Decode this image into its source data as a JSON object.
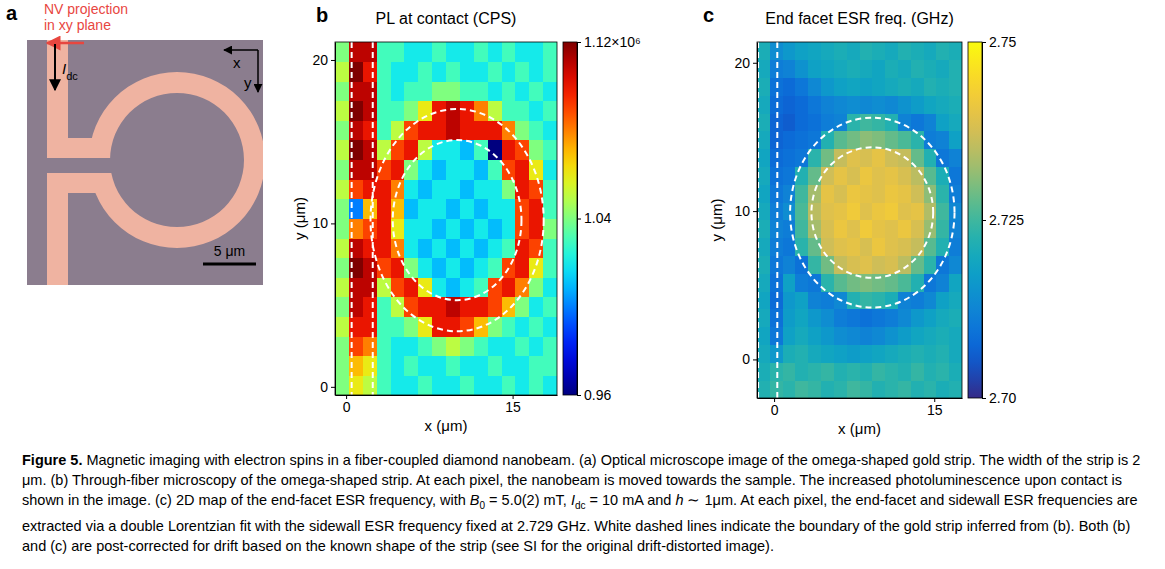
{
  "chart_data": [
    {
      "type": "heatmap",
      "letter": "b",
      "title": "PL at contact (CPS)",
      "x_label": "x (μm)",
      "y_label": "y (μm)",
      "xlim": [
        -1,
        19
      ],
      "ylim": [
        -0.5,
        21.1
      ],
      "xticks": [
        0,
        15
      ],
      "yticks": [
        0,
        10,
        20
      ],
      "x_bins": [
        -1,
        0.25,
        1.5,
        2.75,
        4,
        5.25,
        6.5,
        7.75,
        9,
        10.25,
        11.5,
        12.75,
        14,
        15.25,
        16.5,
        17.75,
        19
      ],
      "y_bins": [
        -0.5,
        0.7,
        1.9,
        3.1,
        4.3,
        5.5,
        6.7,
        7.9,
        9.1,
        10.3,
        11.5,
        12.7,
        13.9,
        15.1,
        16.3,
        17.5,
        18.7,
        19.9,
        21.1
      ],
      "z": [
        [
          1.04,
          1.06,
          1.05,
          1.03,
          1.02,
          1.02,
          1.03,
          1.02,
          1.02,
          1.03,
          1.02,
          1.02,
          1.03,
          1.02,
          1.03,
          1.02
        ],
        [
          1.04,
          1.07,
          1.06,
          1.03,
          1.02,
          1.03,
          1.02,
          1.02,
          1.03,
          1.02,
          1.02,
          1.03,
          1.02,
          1.02,
          1.03,
          1.03
        ],
        [
          1.04,
          1.09,
          1.08,
          1.03,
          1.02,
          1.02,
          1.03,
          1.04,
          1.05,
          1.04,
          1.03,
          1.02,
          1.02,
          1.03,
          1.02,
          1.03
        ],
        [
          1.05,
          1.1,
          1.1,
          1.03,
          1.03,
          1.04,
          1.06,
          1.1,
          1.1,
          1.09,
          1.07,
          1.04,
          1.03,
          1.02,
          1.03,
          1.02
        ],
        [
          1.04,
          1.11,
          1.1,
          1.03,
          1.05,
          1.09,
          1.1,
          1.1,
          1.11,
          1.1,
          1.1,
          1.09,
          1.07,
          1.04,
          1.02,
          1.03
        ],
        [
          1.05,
          1.11,
          1.11,
          1.05,
          1.09,
          1.1,
          1.06,
          1.02,
          1.01,
          1.02,
          1.03,
          1.09,
          1.1,
          1.08,
          1.04,
          1.02
        ],
        [
          1.04,
          1.12,
          1.11,
          1.09,
          1.1,
          1.04,
          1.02,
          1.01,
          1.02,
          1.01,
          1.02,
          1.03,
          1.09,
          1.1,
          1.06,
          1.03
        ],
        [
          1.05,
          1.11,
          1.1,
          1.1,
          1.08,
          1.02,
          1.01,
          1.02,
          1.01,
          1.02,
          1.01,
          1.02,
          1.03,
          1.1,
          1.09,
          1.03
        ],
        [
          1.04,
          1.08,
          1.09,
          1.1,
          1.06,
          1.02,
          1.02,
          1.01,
          1.02,
          1.01,
          1.02,
          1.01,
          1.02,
          1.09,
          1.1,
          1.04
        ],
        [
          1.04,
          1.0,
          1.07,
          1.1,
          1.07,
          1.01,
          1.02,
          1.02,
          1.01,
          1.02,
          1.01,
          1.02,
          1.02,
          1.09,
          1.1,
          1.03
        ],
        [
          1.05,
          1.09,
          1.1,
          1.1,
          1.08,
          1.02,
          1.01,
          1.02,
          1.02,
          1.01,
          1.02,
          1.02,
          1.04,
          1.1,
          1.09,
          1.03
        ],
        [
          1.04,
          1.11,
          1.11,
          1.09,
          1.1,
          1.04,
          1.02,
          1.01,
          1.02,
          1.02,
          1.01,
          1.03,
          1.09,
          1.1,
          1.06,
          1.02
        ],
        [
          1.05,
          1.12,
          1.11,
          1.05,
          1.09,
          1.1,
          1.05,
          1.02,
          1.02,
          1.01,
          1.03,
          0.96,
          1.1,
          1.09,
          1.04,
          1.03
        ],
        [
          1.04,
          1.11,
          1.1,
          1.03,
          1.05,
          1.09,
          1.1,
          1.1,
          1.11,
          1.1,
          1.1,
          1.1,
          1.08,
          1.04,
          1.03,
          1.02
        ],
        [
          1.05,
          1.12,
          1.11,
          1.03,
          1.03,
          1.04,
          1.06,
          1.1,
          1.11,
          1.1,
          1.08,
          1.05,
          1.03,
          1.03,
          1.02,
          1.03
        ],
        [
          1.04,
          1.11,
          1.11,
          1.03,
          1.02,
          1.03,
          1.03,
          1.04,
          1.04,
          1.03,
          1.03,
          1.02,
          1.03,
          1.02,
          1.03,
          1.02
        ],
        [
          1.05,
          1.12,
          1.1,
          1.03,
          1.02,
          1.02,
          1.03,
          1.02,
          1.03,
          1.02,
          1.02,
          1.03,
          1.02,
          1.03,
          1.02,
          1.03
        ],
        [
          1.04,
          1.11,
          1.11,
          1.03,
          1.03,
          1.02,
          1.02,
          1.03,
          1.02,
          1.02,
          1.03,
          1.02,
          1.03,
          1.02,
          1.02,
          1.03
        ]
      ],
      "colorbar": {
        "range": [
          0.96,
          1.12
        ],
        "ticks": [
          0.96,
          1.04,
          {
            "value": 1.12,
            "label": "1.12×10⁶"
          }
        ]
      },
      "boundary": {
        "strip_x": [
          0.5,
          2.4
        ],
        "ring_center": [
          10,
          10.2
        ],
        "ring_outer": [
          7.8,
          6.8
        ],
        "ring_inner": [
          5.8,
          4.9
        ]
      }
    },
    {
      "type": "heatmap",
      "letter": "c",
      "title": "End facet ESR freq. (GHz)",
      "x_label": "x (μm)",
      "y_label": "y (μm)",
      "xlim": [
        -1.6,
        17.6
      ],
      "ylim": [
        -2.6,
        21.4
      ],
      "xticks": [
        0,
        15
      ],
      "yticks": [
        0,
        10,
        20
      ],
      "x_bins": [
        -1.6,
        -0.4,
        0.8,
        2,
        3.2,
        4.4,
        5.6,
        6.8,
        8,
        9.2,
        10.4,
        11.6,
        12.8,
        14,
        15.2,
        16.4,
        17.6
      ],
      "y_bins": [
        -2.6,
        -1.4,
        -0.2,
        1,
        2.2,
        3.4,
        4.6,
        5.8,
        7,
        8.2,
        9.4,
        10.6,
        11.8,
        13,
        14.2,
        15.4,
        16.6,
        17.8,
        19,
        20.2,
        21.4
      ],
      "z": [
        [
          2.722,
          2.724,
          2.723,
          2.725,
          2.724,
          2.722,
          2.723,
          2.725,
          2.724,
          2.722,
          2.723,
          2.724,
          2.722,
          2.723,
          2.721,
          2.722
        ],
        [
          2.721,
          2.723,
          2.724,
          2.722,
          2.723,
          2.724,
          2.722,
          2.723,
          2.722,
          2.724,
          2.723,
          2.722,
          2.724,
          2.722,
          2.723,
          2.721
        ],
        [
          2.72,
          2.716,
          2.721,
          2.722,
          2.72,
          2.719,
          2.718,
          2.717,
          2.718,
          2.719,
          2.72,
          2.721,
          2.722,
          2.721,
          2.722,
          2.72
        ],
        [
          2.719,
          2.71,
          2.718,
          2.72,
          2.718,
          2.716,
          2.714,
          2.713,
          2.712,
          2.713,
          2.715,
          2.717,
          2.719,
          2.72,
          2.721,
          2.72
        ],
        [
          2.72,
          2.709,
          2.717,
          2.719,
          2.716,
          2.714,
          2.711,
          2.71,
          2.709,
          2.71,
          2.711,
          2.713,
          2.716,
          2.718,
          2.72,
          2.721
        ],
        [
          2.719,
          2.708,
          2.716,
          2.718,
          2.712,
          2.711,
          2.713,
          2.722,
          2.724,
          2.723,
          2.721,
          2.712,
          2.711,
          2.713,
          2.718,
          2.72
        ],
        [
          2.72,
          2.709,
          2.718,
          2.711,
          2.71,
          2.723,
          2.727,
          2.729,
          2.73,
          2.729,
          2.728,
          2.726,
          2.722,
          2.71,
          2.712,
          2.719
        ],
        [
          2.721,
          2.71,
          2.712,
          2.709,
          2.724,
          2.729,
          2.736,
          2.738,
          2.739,
          2.737,
          2.738,
          2.735,
          2.728,
          2.723,
          2.71,
          2.713
        ],
        [
          2.72,
          2.711,
          2.71,
          2.723,
          2.728,
          2.737,
          2.739,
          2.74,
          2.738,
          2.741,
          2.739,
          2.738,
          2.736,
          2.727,
          2.722,
          2.711
        ],
        [
          2.721,
          2.712,
          2.711,
          2.725,
          2.733,
          2.738,
          2.741,
          2.739,
          2.742,
          2.74,
          2.739,
          2.741,
          2.738,
          2.732,
          2.724,
          2.712
        ],
        [
          2.72,
          2.711,
          2.714,
          2.726,
          2.735,
          2.739,
          2.74,
          2.742,
          2.739,
          2.741,
          2.742,
          2.739,
          2.74,
          2.734,
          2.725,
          2.713
        ],
        [
          2.719,
          2.71,
          2.712,
          2.725,
          2.733,
          2.74,
          2.738,
          2.741,
          2.74,
          2.739,
          2.741,
          2.74,
          2.737,
          2.731,
          2.723,
          2.711
        ],
        [
          2.72,
          2.709,
          2.71,
          2.722,
          2.728,
          2.737,
          2.74,
          2.738,
          2.741,
          2.739,
          2.74,
          2.738,
          2.735,
          2.727,
          2.721,
          2.71
        ],
        [
          2.719,
          2.708,
          2.709,
          2.71,
          2.723,
          2.729,
          2.736,
          2.739,
          2.738,
          2.74,
          2.737,
          2.736,
          2.728,
          2.722,
          2.71,
          2.712
        ],
        [
          2.72,
          2.707,
          2.708,
          2.709,
          2.71,
          2.722,
          2.727,
          2.729,
          2.731,
          2.73,
          2.728,
          2.726,
          2.723,
          2.711,
          2.712,
          2.718
        ],
        [
          2.721,
          2.707,
          2.706,
          2.708,
          2.709,
          2.711,
          2.712,
          2.723,
          2.725,
          2.724,
          2.722,
          2.712,
          2.71,
          2.712,
          2.718,
          2.72
        ],
        [
          2.72,
          2.708,
          2.707,
          2.708,
          2.71,
          2.712,
          2.713,
          2.714,
          2.713,
          2.714,
          2.713,
          2.715,
          2.717,
          2.719,
          2.72,
          2.721
        ],
        [
          2.721,
          2.709,
          2.708,
          2.71,
          2.713,
          2.716,
          2.718,
          2.719,
          2.718,
          2.719,
          2.72,
          2.721,
          2.72,
          2.722,
          2.721,
          2.722
        ],
        [
          2.72,
          2.711,
          2.712,
          2.715,
          2.718,
          2.719,
          2.72,
          2.721,
          2.72,
          2.719,
          2.721,
          2.72,
          2.722,
          2.721,
          2.72,
          2.722
        ],
        [
          2.721,
          2.714,
          2.716,
          2.718,
          2.719,
          2.72,
          2.721,
          2.72,
          2.722,
          2.721,
          2.72,
          2.722,
          2.721,
          2.72,
          2.722,
          2.721
        ]
      ],
      "colorbar": {
        "range": [
          2.7,
          2.75
        ],
        "ticks": [
          {
            "value": 2.7,
            "label": "2.70"
          },
          2.725,
          2.75
        ]
      },
      "boundary": {
        "strip_x": [
          -1.5,
          0.3
        ],
        "ring_center": [
          9.2,
          9.9
        ],
        "ring_outer": [
          7.7,
          6.4
        ],
        "ring_inner": [
          5.7,
          4.4
        ]
      }
    }
  ],
  "panel_a": {
    "letter": "a",
    "nv_label": [
      "NV projection",
      "in xy plane"
    ],
    "current_label": [
      "I",
      "dc"
    ],
    "axis_x": "x",
    "axis_y": "y",
    "scale_bar": "5 μm"
  },
  "caption": {
    "runs": [
      {
        "text": "Figure 5.",
        "style": "bold"
      },
      {
        "text": " Magnetic imaging with electron spins in a fiber-coupled diamond nanobeam. (a) Optical microscope image of the omega-shaped gold strip. The width of the strip is 2 μm. (b) Through-fiber microscopy of the omega-shaped strip. At each pixel, the nanobeam is moved towards the sample. The increased photoluminescence upon contact is shown in the image. (c) 2D map of the end-facet ESR frequency, with "
      },
      {
        "text": "B",
        "style": "italic"
      },
      {
        "text": "0",
        "style": "sub"
      },
      {
        "text": " = 5.0(2) mT, "
      },
      {
        "text": "I",
        "style": "italic"
      },
      {
        "text": "dc",
        "style": "sub"
      },
      {
        "text": " = 10 mA and "
      },
      {
        "text": "h",
        "style": "italic"
      },
      {
        "text": " ∼ 1μm. At each pixel, the end-facet and sidewall ESR frequencies are extracted via a double Lorentzian fit with the sidewall ESR frequency fixed at 2.729 GHz. White dashed lines indicate the boundary of the gold strip inferred from (b). Both (b) and (c) are post-corrected for drift based on the known shape of the strip (see SI for the original drift-distorted image)."
      }
    ]
  }
}
